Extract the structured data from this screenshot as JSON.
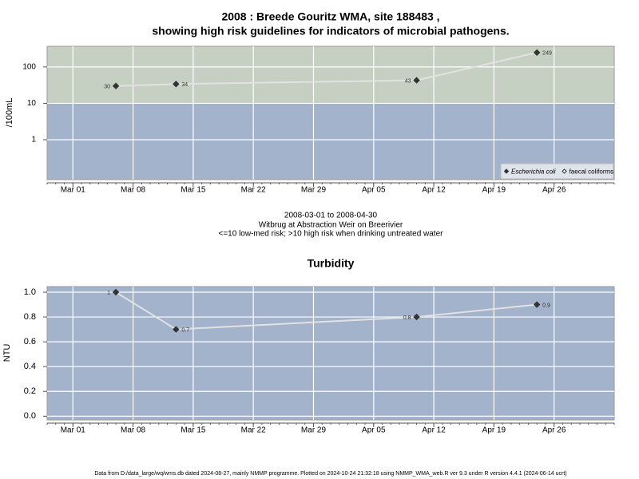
{
  "chart_data": [
    {
      "type": "line",
      "title": [
        "2008 : Breede Gouritz WMA, site 188483 ,",
        "showing high risk guidelines for indicators of microbial pathogens."
      ],
      "ylabel": "/100mL",
      "caption": [
        "2008-03-01 to 2008-04-30",
        "Witbrug at Abstraction Weir on Breerivier",
        "<=10 low-med risk; >10 high risk when drinking untreated water"
      ],
      "x": [
        "2008-03-06",
        "2008-03-13",
        "2008-04-10",
        "2008-04-24"
      ],
      "series": [
        {
          "name": "Escherichia coli",
          "color": "#333333",
          "marker": "filled-diamond",
          "values": [
            30,
            34,
            43,
            249
          ]
        },
        {
          "name": "faecal coliforms",
          "color": "#333333",
          "marker": "open-diamond",
          "values": [
            null,
            null,
            null,
            null
          ]
        }
      ],
      "yscale": "log",
      "ylim": [
        0.08,
        370
      ],
      "yticks": [
        1,
        10,
        100
      ],
      "xlim": [
        "2008-02-27",
        "2008-05-03"
      ],
      "xticks": [
        {
          "value": "2008-03-01",
          "label": "Mar 01"
        },
        {
          "value": "2008-03-08",
          "label": "Mar 08"
        },
        {
          "value": "2008-03-15",
          "label": "Mar 15"
        },
        {
          "value": "2008-03-22",
          "label": "Mar 22"
        },
        {
          "value": "2008-03-29",
          "label": "Mar 29"
        },
        {
          "value": "2008-04-05",
          "label": "Apr 05"
        },
        {
          "value": "2008-04-12",
          "label": "Apr 12"
        },
        {
          "value": "2008-04-19",
          "label": "Apr 19"
        },
        {
          "value": "2008-04-26",
          "label": "Apr 26"
        }
      ],
      "threshold": 10,
      "threshold_colors": [
        "#a3b3cb",
        "#c5cfc2"
      ],
      "grid": true,
      "legend": "lower right"
    },
    {
      "type": "line",
      "title": "Turbidity",
      "ylabel": "NTU",
      "x": [
        "2008-03-06",
        "2008-03-13",
        "2008-04-10",
        "2008-04-24"
      ],
      "series": [
        {
          "name": "Turbidity",
          "color": "#333333",
          "marker": "filled-diamond",
          "values": [
            1,
            0.7,
            0.8,
            0.9
          ]
        }
      ],
      "ylim": [
        -0.03,
        1.045
      ],
      "yticks": [
        {
          "value": 0,
          "label": "0.0"
        },
        0.2,
        0.4,
        0.6,
        0.8,
        {
          "value": 1,
          "label": "1.0"
        }
      ],
      "xlim": [
        "2008-02-27",
        "2008-05-03"
      ],
      "xticks": [
        {
          "value": "2008-03-01",
          "label": "Mar 01"
        },
        {
          "value": "2008-03-08",
          "label": "Mar 08"
        },
        {
          "value": "2008-03-15",
          "label": "Mar 15"
        },
        {
          "value": "2008-03-22",
          "label": "Mar 22"
        },
        {
          "value": "2008-03-29",
          "label": "Mar 29"
        },
        {
          "value": "2008-04-05",
          "label": "Apr 05"
        },
        {
          "value": "2008-04-12",
          "label": "Apr 12"
        },
        {
          "value": "2008-04-19",
          "label": "Apr 19"
        },
        {
          "value": "2008-04-26",
          "label": "Apr 26"
        }
      ],
      "background": "#a3b3cb",
      "grid": true
    }
  ],
  "footer": "Data from D:/data_large/wq/wms.db dated 2024-08-27, mainly NMMP programme. Plotted on 2024-10-24 21:32:18 using NMMP_WMA_web.R ver 9.3 under R version 4.4.1 (2024-06-14 ucrt)"
}
